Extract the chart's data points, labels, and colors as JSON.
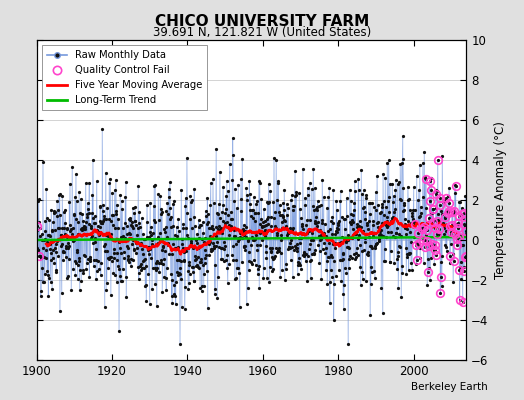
{
  "title": "CHICO UNIVERSITY FARM",
  "subtitle": "39.691 N, 121.821 W (United States)",
  "ylabel": "Temperature Anomaly (°C)",
  "attribution": "Berkeley Earth",
  "xlim": [
    1900,
    2014
  ],
  "ylim": [
    -6,
    10
  ],
  "yticks": [
    -6,
    -4,
    -2,
    0,
    2,
    4,
    6,
    8,
    10
  ],
  "xticks": [
    1900,
    1920,
    1940,
    1960,
    1980,
    2000
  ],
  "background_color": "#e0e0e0",
  "plot_bg_color": "#ffffff",
  "raw_line_color": "#7799dd",
  "raw_dot_color": "#111111",
  "qc_fail_color": "#ff44cc",
  "moving_avg_color": "#ff0000",
  "trend_color": "#00bb00",
  "seed": 42,
  "n_months": 1368,
  "start_year": 1900,
  "end_year": 2014
}
